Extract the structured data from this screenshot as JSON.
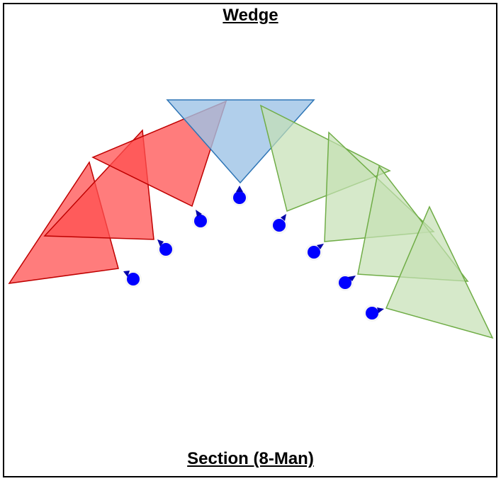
{
  "diagram": {
    "title": "Wedge",
    "caption": "Section (8-Man)",
    "colors": {
      "left_fill": "#ff5050",
      "left_stroke": "#c00000",
      "center_fill": "#9dc3e6",
      "center_stroke": "#2e75b6",
      "right_fill": "#c5e0b4",
      "right_stroke": "#70ad47",
      "soldier": "#0000ff"
    },
    "soldier_count": 8
  }
}
